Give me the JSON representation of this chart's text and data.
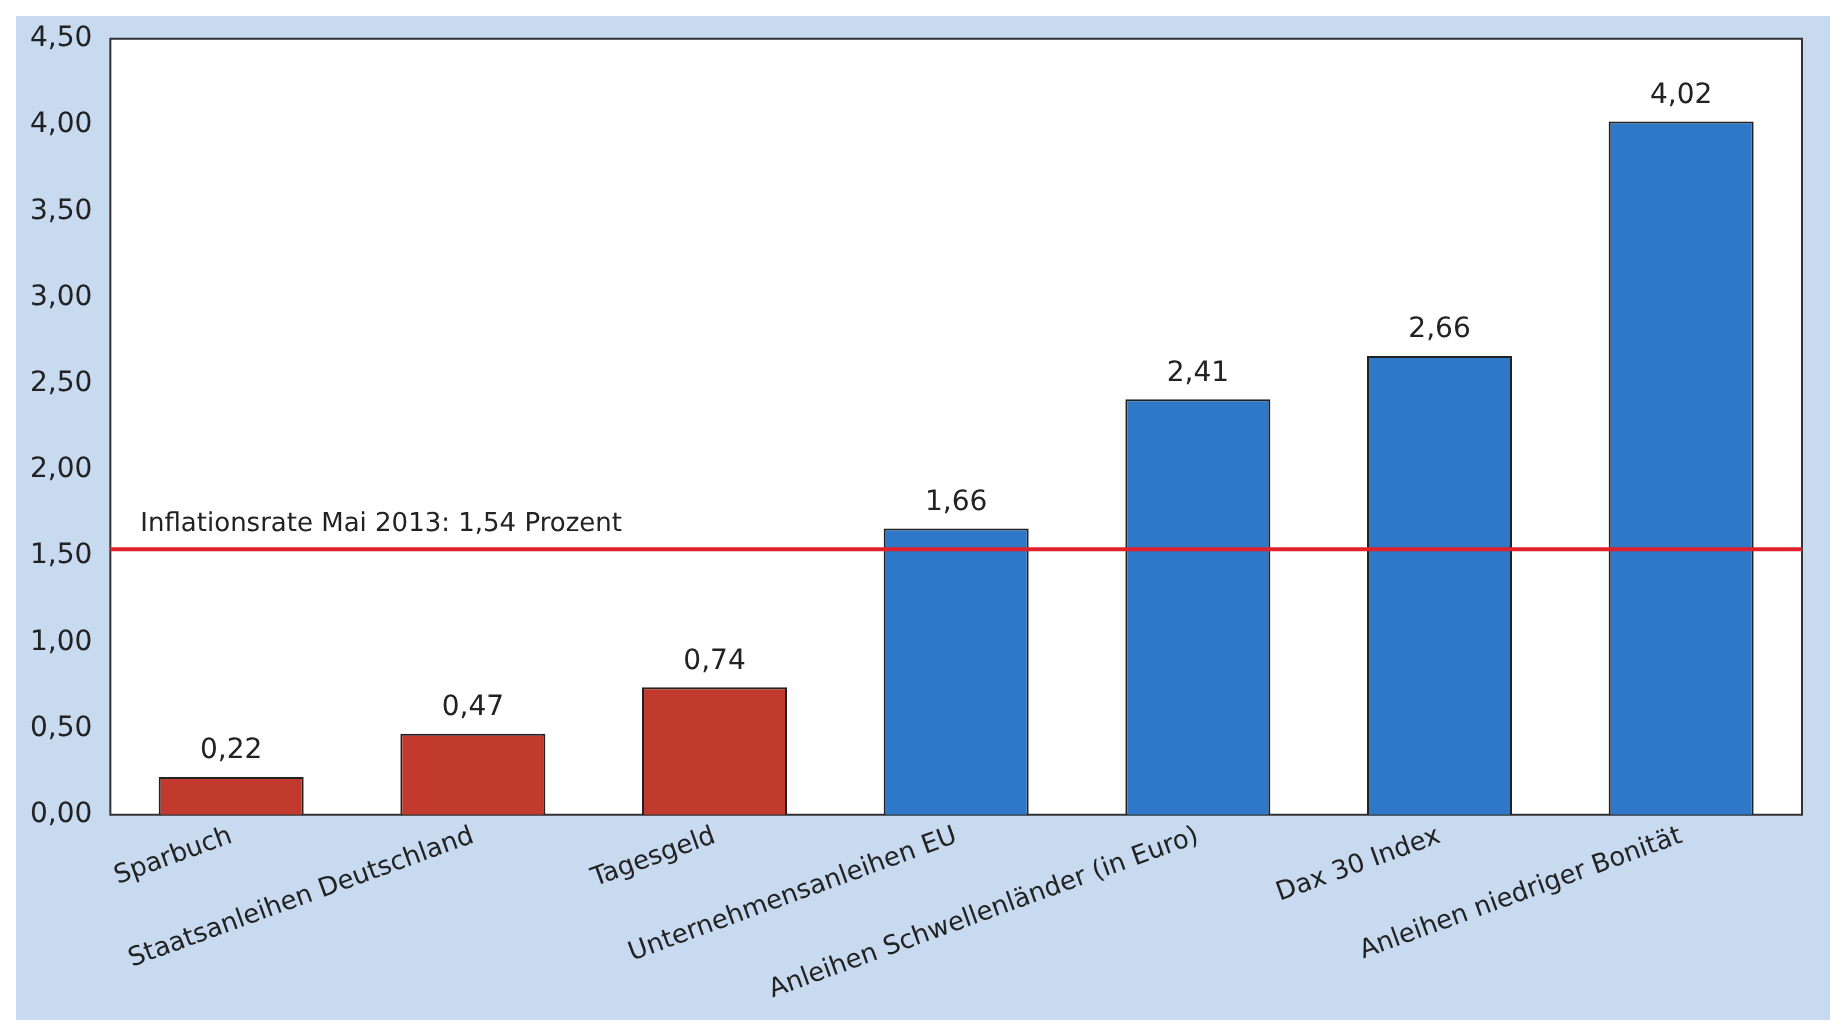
{
  "chart_data": {
    "type": "bar",
    "categories": [
      "Sparbuch",
      "Staatsanleihen Deutschland",
      "Tagesgeld",
      "Unternehmensanleihen EU",
      "Anleihen Schwellenländer (in Euro)",
      "Dax 30 Index",
      "Anleihen niedriger Bonität"
    ],
    "values": [
      0.22,
      0.47,
      0.74,
      1.66,
      2.41,
      2.66,
      4.02
    ],
    "colors": [
      "#c23a2e",
      "#c23a2e",
      "#c23a2e",
      "#2f78c8",
      "#2f78c8",
      "#2f78c8",
      "#2f78c8"
    ],
    "value_labels": [
      "0,22",
      "0,47",
      "0,74",
      "1,66",
      "2,41",
      "2,66",
      "4,02"
    ],
    "ylim": [
      0,
      4.5
    ],
    "yticks": [
      {
        "value": 0,
        "label": "0,00"
      },
      {
        "value": 0.5,
        "label": "0,50"
      },
      {
        "value": 1,
        "label": "1,00"
      },
      {
        "value": 1.5,
        "label": "1,50"
      },
      {
        "value": 2,
        "label": "2,00"
      },
      {
        "value": 2.5,
        "label": "2,50"
      },
      {
        "value": 3,
        "label": "3,00"
      },
      {
        "value": 3.5,
        "label": "3,50"
      },
      {
        "value": 4,
        "label": "4,00"
      },
      {
        "value": 4.5,
        "label": "4,50"
      }
    ],
    "ref_lines": [
      {
        "axis": "y",
        "value": 1.54,
        "label": "Inflationsrate Mai 2013: 1,54 Prozent",
        "color": "#e0202a"
      }
    ],
    "grid": false,
    "legend": false
  }
}
